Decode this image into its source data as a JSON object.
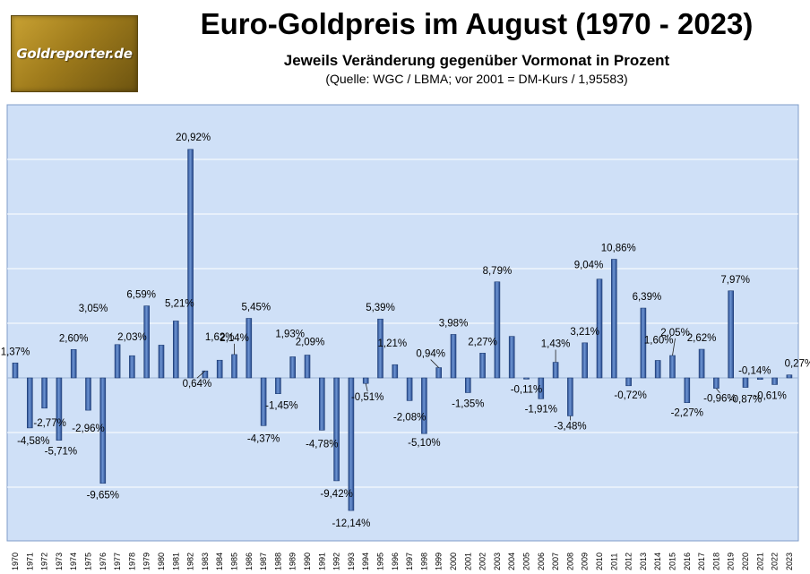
{
  "logo_text": "Goldreporter.de",
  "chart_data": {
    "type": "bar",
    "title": "Euro-Goldpreis im August (1970 - 2023)",
    "subtitle": "Jeweils Veränderung gegenüber Vormonat in Prozent",
    "source": "(Quelle: WGC / LBMA; vor 2001 = DM-Kurs / 1,95583)",
    "xlabel": "",
    "ylabel": "",
    "ylim": [
      -16,
      25
    ],
    "grid": true,
    "colors": {
      "bar": "#3a64a8",
      "bar_light": "#6f96d4",
      "plot_bg": "#cfe0f7",
      "grid": "#ffffff"
    },
    "categories": [
      "1970",
      "1971",
      "1972",
      "1973",
      "1974",
      "1975",
      "1976",
      "1977",
      "1978",
      "1979",
      "1980",
      "1981",
      "1982",
      "1983",
      "1984",
      "1985",
      "1986",
      "1987",
      "1988",
      "1989",
      "1990",
      "1991",
      "1992",
      "1993",
      "1994",
      "1995",
      "1996",
      "1997",
      "1998",
      "1999",
      "2000",
      "2001",
      "2002",
      "2003",
      "2004",
      "2005",
      "2006",
      "2007",
      "2008",
      "2009",
      "2010",
      "2011",
      "2012",
      "2013",
      "2014",
      "2015",
      "2016",
      "2017",
      "2018",
      "2019",
      "2020",
      "2021",
      "2022",
      "2023"
    ],
    "values": [
      1.37,
      -4.58,
      -2.77,
      -5.71,
      2.6,
      -2.96,
      -9.65,
      3.05,
      2.03,
      6.59,
      3.0,
      5.21,
      20.92,
      0.64,
      1.62,
      2.14,
      5.45,
      -4.37,
      -1.45,
      1.93,
      2.09,
      -4.78,
      -9.42,
      -12.14,
      -0.51,
      5.39,
      1.21,
      -2.08,
      -5.1,
      0.94,
      3.98,
      -1.35,
      2.27,
      8.79,
      3.8,
      -0.11,
      -1.91,
      1.43,
      -3.48,
      3.21,
      9.04,
      10.86,
      -0.72,
      6.39,
      1.6,
      2.05,
      -2.27,
      2.62,
      -0.96,
      7.97,
      -0.87,
      -0.14,
      -0.61,
      0.27
    ],
    "data_labels": [
      "1,37%",
      "-4,58%",
      "-2,77%",
      "-5,71%",
      "2,60%",
      "-2,96%",
      "-9,65%",
      "3,05%",
      "2,03%",
      "6,59%",
      "",
      "5,21%",
      "20,92%",
      "0,64%",
      "1,62%",
      "2,14%",
      "5,45%",
      "-4,37%",
      "-1,45%",
      "1,93%",
      "2,09%",
      "-4,78%",
      "-9,42%",
      "-12,14%",
      "-0,51%",
      "5,39%",
      "1,21%",
      "-2,08%",
      "-5,10%",
      "0,94%",
      "3,98%",
      "-1,35%",
      "2,27%",
      "8,79%",
      "",
      "-0,11%",
      "-1,91%",
      "1,43%",
      "-3,48%",
      "3,21%",
      "9,04%",
      "10,86%",
      "-0,72%",
      "6,39%",
      "1,60%",
      "2,05%",
      "-2,27%",
      "2,62%",
      "-0,96%",
      "7,97%",
      "-0,87%",
      "-0,14%",
      "-0,61%",
      "0,27%"
    ]
  }
}
